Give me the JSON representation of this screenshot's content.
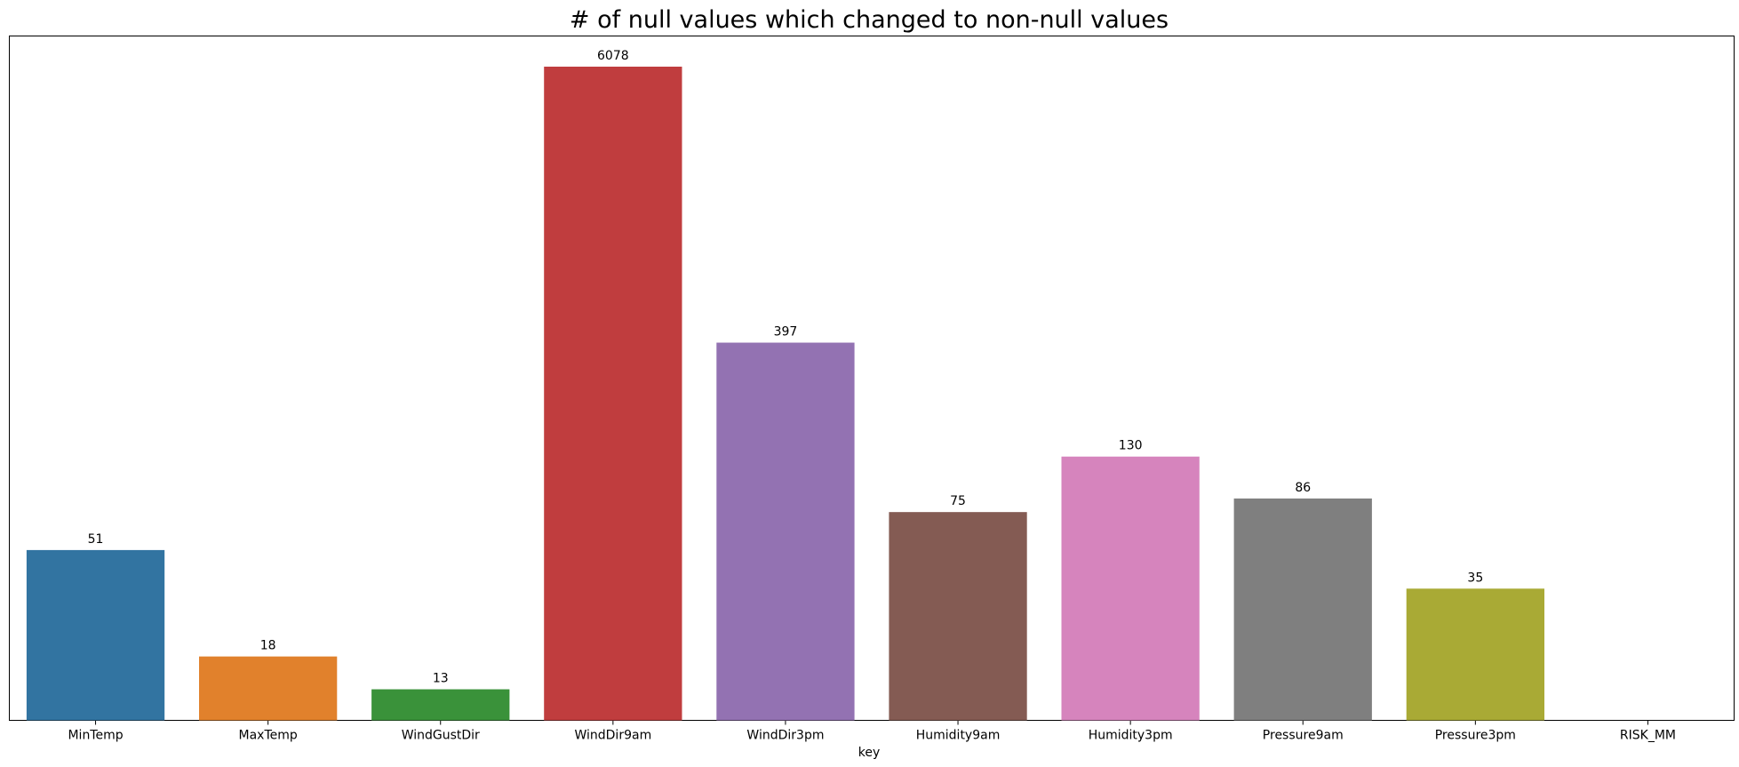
{
  "chart_data": {
    "type": "bar",
    "title": "# of null values which changed to non-null values",
    "xlabel": "key",
    "ylabel": "",
    "categories": [
      "MinTemp",
      "MaxTemp",
      "WindGustDir",
      "WindDir9am",
      "WindDir3pm",
      "Humidity9am",
      "Humidity3pm",
      "Pressure9am",
      "Pressure3pm",
      "RISK_MM"
    ],
    "value_labels": [
      "51",
      "18",
      "13",
      "6078",
      "397",
      "75",
      "130",
      "86",
      "35",
      ""
    ],
    "heights_relative": [
      0.2605,
      0.0977,
      0.0475,
      1.0,
      0.5778,
      0.3186,
      0.4035,
      0.3394,
      0.2015,
      0.0
    ],
    "colors": [
      "#3274a1",
      "#e1812c",
      "#3a923a",
      "#c03d3e",
      "#9372b2",
      "#845b53",
      "#d684bd",
      "#7f7f7f",
      "#a9aa35",
      "#2eb0c1"
    ],
    "yticks_shown": false,
    "grid": false,
    "legend": "none"
  }
}
